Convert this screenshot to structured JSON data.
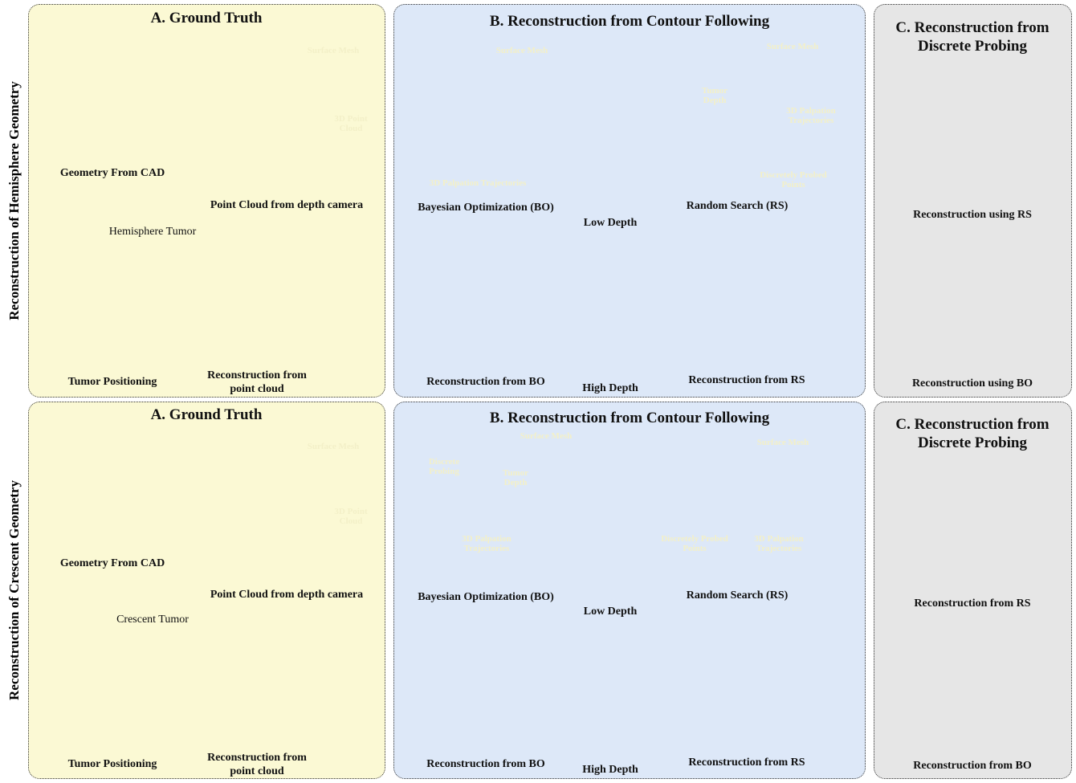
{
  "rows": [
    {
      "side_label": "Reconstruction of Hemisphere Geometry",
      "panel_a": {
        "title": "A. Ground Truth",
        "cad_caption": "Geometry From CAD",
        "pointcloud_caption": "Point Cloud from depth camera",
        "pointcloud_labels": [
          "Surface Mesh",
          "3D Point Cloud"
        ],
        "tumor_label": "Hemisphere Tumor",
        "positioning_caption": "Tumor Positioning",
        "recon_caption": "Reconstruction from point cloud"
      },
      "panel_b": {
        "title": "B. Reconstruction from Contour Following",
        "bo_caption": "Bayesian Optimization (BO)",
        "bo_labels": [
          "Surface Mesh",
          "3D Palpation Trajectories"
        ],
        "rs_caption": "Random Search (RS)",
        "rs_labels": [
          "Surface Mesh",
          "Tumor Depth",
          "3D Palpation Trajectories",
          "Discretely Probed Points"
        ],
        "colorbar_top": "Low Depth",
        "colorbar_bottom": "High Depth",
        "recon_bo_caption": "Reconstruction from BO",
        "recon_rs_caption": "Reconstruction from RS"
      },
      "panel_c": {
        "title": "C. Reconstruction from Discrete Probing",
        "top_caption": "Reconstruction using RS",
        "bottom_caption": "Reconstruction using BO"
      }
    },
    {
      "side_label": "Reconstruction of Crescent Geometry",
      "panel_a": {
        "title": "A. Ground Truth",
        "cad_caption": "Geometry From CAD",
        "pointcloud_caption": "Point Cloud from depth camera",
        "pointcloud_labels": [
          "Surface Mesh",
          "3D Point Cloud"
        ],
        "tumor_label": "Crescent Tumor",
        "positioning_caption": "Tumor Positioning",
        "recon_caption": "Reconstruction from point cloud"
      },
      "panel_b": {
        "title": "B. Reconstruction from Contour Following",
        "bo_caption": "Bayesian Optimization (BO)",
        "bo_labels": [
          "Surface Mesh",
          "Discrete Probing",
          "Tumor Depth",
          "3D Palpation Trajectories"
        ],
        "rs_caption": "Random Search (RS)",
        "rs_labels": [
          "Surface Mesh",
          "Discretely Probed Points",
          "3D Palpation Trajectories"
        ],
        "colorbar_top": "Low Depth",
        "colorbar_bottom": "High Depth",
        "recon_bo_caption": "Reconstruction from BO",
        "recon_rs_caption": "Reconstruction from RS"
      },
      "panel_c": {
        "title": "C. Reconstruction from Discrete Probing",
        "top_caption": "Reconstruction from RS",
        "bottom_caption": "Reconstruction from BO"
      }
    }
  ]
}
